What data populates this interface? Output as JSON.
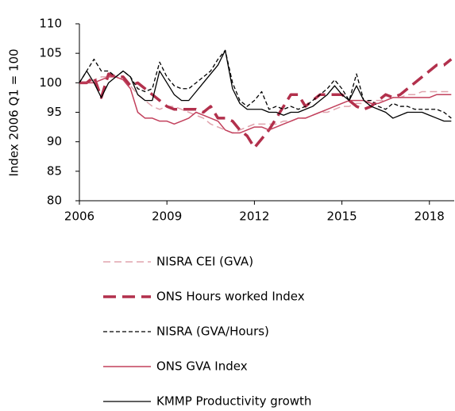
{
  "chart_data": {
    "type": "line",
    "y_label": "Index 2006 Q1 = 100",
    "x": [
      2006,
      2006.25,
      2006.5,
      2006.75,
      2007,
      2007.25,
      2007.5,
      2007.75,
      2008,
      2008.25,
      2008.5,
      2008.75,
      2009,
      2009.25,
      2009.5,
      2009.75,
      2010,
      2010.25,
      2010.5,
      2010.75,
      2011,
      2011.25,
      2011.5,
      2011.75,
      2012,
      2012.25,
      2012.5,
      2012.75,
      2013,
      2013.25,
      2013.5,
      2013.75,
      2014,
      2014.25,
      2014.5,
      2014.75,
      2015,
      2015.25,
      2015.5,
      2015.75,
      2016,
      2016.25,
      2016.5,
      2016.75,
      2017,
      2017.25,
      2017.5,
      2017.75,
      2018,
      2018.25,
      2018.5,
      2018.75
    ],
    "xlim": [
      2006,
      2018.85
    ],
    "xticks": [
      2006,
      2009,
      2012,
      2015,
      2018
    ],
    "ylim": [
      80,
      110
    ],
    "yticks": [
      80,
      85,
      90,
      95,
      100,
      105,
      110
    ],
    "series": [
      {
        "name": "NISRA CEI (GVA)",
        "color": "#e0a3ad",
        "width": 1.5,
        "dash": "9,5",
        "values": [
          100,
          100,
          100.5,
          101,
          101,
          101,
          100.5,
          99.5,
          98,
          97,
          96,
          95.5,
          96,
          96,
          95.5,
          95,
          94.5,
          94,
          93,
          92.5,
          92,
          91.5,
          92,
          92.5,
          93,
          93,
          93,
          93,
          93.5,
          93.5,
          94,
          94,
          94.5,
          95,
          95,
          95.5,
          96,
          96,
          96.5,
          96.5,
          97,
          97,
          97,
          97.5,
          97.5,
          98,
          98,
          98.5,
          98.5,
          98.5,
          98.5,
          98.5
        ]
      },
      {
        "name": "ONS Hours worked Index",
        "color": "#b2304c",
        "width": 3.5,
        "dash": "16,8",
        "values": [
          100,
          100,
          101,
          97.5,
          101.5,
          101,
          101,
          99.5,
          100,
          99,
          98,
          97,
          96,
          95.5,
          95.5,
          95.5,
          95.5,
          95,
          96,
          94,
          94,
          93.5,
          92,
          91,
          89,
          90.5,
          92,
          94,
          96,
          98,
          98,
          96,
          97,
          98,
          98,
          98,
          98,
          97,
          96,
          95.5,
          96,
          97,
          98,
          97.5,
          98,
          99,
          100,
          101,
          102,
          103,
          103,
          104
        ]
      },
      {
        "name": "NISRA (GVA/Hours)",
        "color": "#000000",
        "width": 1.3,
        "dash": "5,3",
        "values": [
          100,
          102,
          104,
          102,
          102,
          101,
          102,
          101,
          99,
          98.5,
          99,
          103.5,
          101,
          99.5,
          99,
          99,
          100,
          101,
          102,
          104,
          105.5,
          100,
          97,
          96,
          97,
          98.5,
          95.5,
          96,
          95.5,
          96,
          95.5,
          96,
          97,
          98,
          99,
          100.5,
          99,
          97,
          101.5,
          97,
          97,
          96,
          95.5,
          96.5,
          96,
          96,
          95.5,
          95.5,
          95.5,
          95.5,
          95,
          94
        ]
      },
      {
        "name": "ONS GVA Index",
        "color": "#c2405c",
        "width": 1.5,
        "dash": "",
        "values": [
          100,
          100,
          100,
          100.5,
          101,
          101,
          100.5,
          99,
          95,
          94,
          94,
          93.5,
          93.5,
          93,
          93.5,
          94,
          95,
          94.5,
          94,
          93.5,
          92,
          91.5,
          91.5,
          92,
          92.5,
          92.5,
          92,
          92.5,
          93,
          93.5,
          94,
          94,
          94.5,
          95,
          95.5,
          96,
          96.5,
          97,
          97,
          97,
          96.5,
          96.5,
          97,
          97.5,
          97.5,
          97.5,
          97.5,
          97.5,
          97.5,
          98,
          98,
          98
        ]
      },
      {
        "name": "KMMP Productivity growth",
        "color": "#000000",
        "width": 1.3,
        "dash": "",
        "values": [
          100,
          102,
          100,
          97.5,
          100,
          101,
          102,
          101,
          98,
          97,
          97,
          102,
          100,
          98,
          97,
          97,
          98.5,
          100,
          101.5,
          103,
          105.5,
          99,
          96.5,
          95.5,
          95.5,
          95.5,
          95,
          95,
          94.5,
          95,
          95,
          95.5,
          96,
          97,
          98,
          99.5,
          98,
          97,
          99.5,
          97,
          96,
          95.5,
          95,
          94,
          94.5,
          95,
          95,
          95,
          94.5,
          94,
          93.5,
          93.5
        ]
      }
    ]
  }
}
